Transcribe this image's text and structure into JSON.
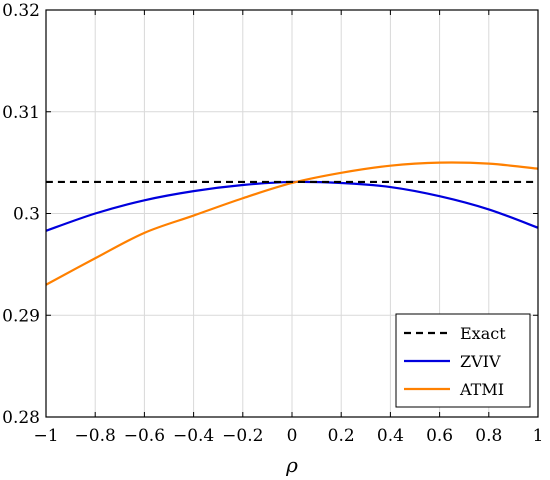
{
  "chart_data": {
    "type": "line",
    "xlabel": "ρ",
    "ylabel": "",
    "xlim": [
      -1,
      1
    ],
    "ylim": [
      0.28,
      0.32
    ],
    "grid": true,
    "legend_position": "bottom-right",
    "x_ticks": [
      -1,
      -0.8,
      -0.6,
      -0.4,
      -0.2,
      0,
      0.2,
      0.4,
      0.6,
      0.8,
      1
    ],
    "x_tick_labels": [
      "−1",
      "−0.8",
      "−0.6",
      "−0.4",
      "−0.2",
      "0",
      "0.2",
      "0.4",
      "0.6",
      "0.8",
      "1"
    ],
    "y_ticks": [
      0.28,
      0.29,
      0.3,
      0.31,
      0.32
    ],
    "y_tick_labels": [
      "0.28",
      "0.29",
      "0.3",
      "0.31",
      "0.32"
    ],
    "x": [
      -1,
      -0.8,
      -0.6,
      -0.4,
      -0.2,
      0,
      0.2,
      0.4,
      0.6,
      0.8,
      1
    ],
    "series": [
      {
        "name": "Exact",
        "color": "#000000",
        "dash": "dashed",
        "values": [
          0.3031,
          0.3031,
          0.3031,
          0.3031,
          0.3031,
          0.3031,
          0.3031,
          0.3031,
          0.3031,
          0.3031,
          0.3031
        ]
      },
      {
        "name": "ZVIV",
        "color": "#0000dd",
        "dash": "solid",
        "values": [
          0.2983,
          0.3,
          0.3013,
          0.3022,
          0.3028,
          0.3031,
          0.303,
          0.3026,
          0.3017,
          0.3004,
          0.2986
        ]
      },
      {
        "name": "ATMI",
        "color": "#ff8000",
        "dash": "solid",
        "values": [
          0.293,
          0.2956,
          0.2981,
          0.2998,
          0.3015,
          0.303,
          0.304,
          0.3047,
          0.305,
          0.3049,
          0.3044
        ]
      }
    ]
  }
}
